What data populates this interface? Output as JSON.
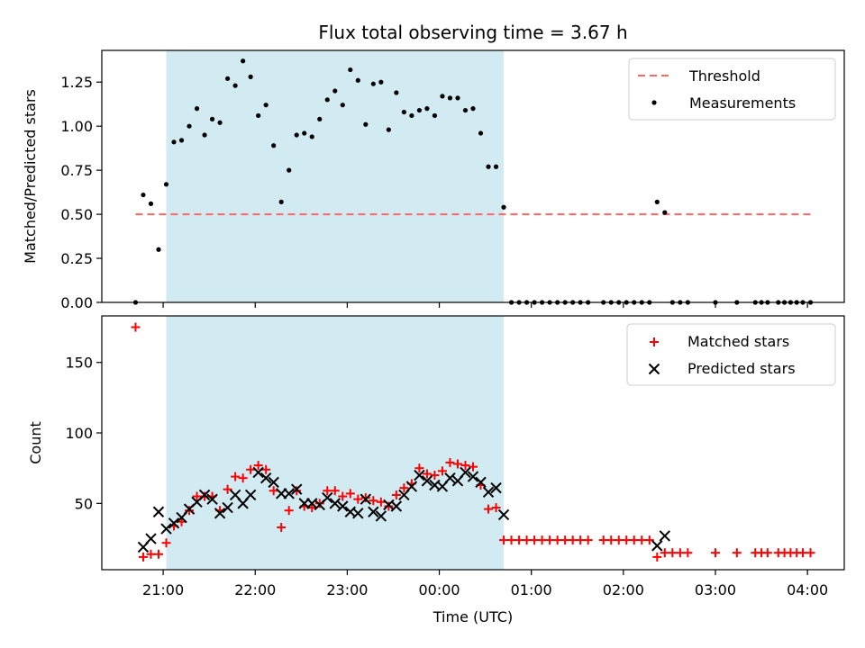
{
  "title": "Flux total observing time = 3.67 h",
  "xlabel": "Time (UTC)",
  "x_tick_labels": [
    "21:00",
    "22:00",
    "23:00",
    "00:00",
    "01:00",
    "02:00",
    "03:00",
    "04:00"
  ],
  "colors": {
    "shade": "#add8e6",
    "threshold": "#ff6666",
    "matched": "#ff0000",
    "predicted": "#000000",
    "measurement": "#000000"
  },
  "chart_data": [
    {
      "type": "scatter",
      "panel": "top",
      "ylabel": "Matched/Predicted stars",
      "xlim": [
        "20:20",
        "04:24"
      ],
      "ylim": [
        0,
        1.43
      ],
      "y_ticks": [
        "0.00",
        "0.25",
        "0.50",
        "0.75",
        "1.00",
        "1.25"
      ],
      "shaded_span": [
        "21:02",
        "00:42"
      ],
      "threshold": {
        "name": "Threshold",
        "value": 0.5,
        "x_range": [
          "20:42",
          "04:04"
        ]
      },
      "legend": {
        "position": "upper right",
        "entries": [
          "Threshold",
          "Measurements"
        ]
      },
      "series": [
        {
          "name": "Measurements",
          "points": [
            [
              "20:42",
              0.0
            ],
            [
              "20:47",
              0.61
            ],
            [
              "20:52",
              0.56
            ],
            [
              "20:57",
              0.3
            ],
            [
              "21:02",
              0.67
            ],
            [
              "21:07",
              0.91
            ],
            [
              "21:12",
              0.92
            ],
            [
              "21:17",
              1.0
            ],
            [
              "21:22",
              1.1
            ],
            [
              "21:27",
              0.95
            ],
            [
              "21:32",
              1.04
            ],
            [
              "21:37",
              1.02
            ],
            [
              "21:42",
              1.27
            ],
            [
              "21:47",
              1.23
            ],
            [
              "21:52",
              1.37
            ],
            [
              "21:57",
              1.28
            ],
            [
              "22:02",
              1.06
            ],
            [
              "22:07",
              1.12
            ],
            [
              "22:12",
              0.89
            ],
            [
              "22:17",
              0.57
            ],
            [
              "22:22",
              0.75
            ],
            [
              "22:27",
              0.95
            ],
            [
              "22:32",
              0.96
            ],
            [
              "22:37",
              0.94
            ],
            [
              "22:42",
              1.04
            ],
            [
              "22:47",
              1.15
            ],
            [
              "22:52",
              1.2
            ],
            [
              "22:57",
              1.12
            ],
            [
              "23:02",
              1.32
            ],
            [
              "23:07",
              1.26
            ],
            [
              "23:12",
              1.01
            ],
            [
              "23:17",
              1.24
            ],
            [
              "23:22",
              1.25
            ],
            [
              "23:27",
              0.98
            ],
            [
              "23:32",
              1.19
            ],
            [
              "23:37",
              1.08
            ],
            [
              "23:42",
              1.06
            ],
            [
              "23:47",
              1.09
            ],
            [
              "23:52",
              1.1
            ],
            [
              "23:57",
              1.06
            ],
            [
              "00:02",
              1.17
            ],
            [
              "00:07",
              1.16
            ],
            [
              "00:12",
              1.16
            ],
            [
              "00:17",
              1.09
            ],
            [
              "00:22",
              1.1
            ],
            [
              "00:27",
              0.96
            ],
            [
              "00:32",
              0.77
            ],
            [
              "00:37",
              0.77
            ],
            [
              "00:42",
              0.54
            ],
            [
              "00:47",
              0.0
            ],
            [
              "00:52",
              0.0
            ],
            [
              "00:57",
              0.0
            ],
            [
              "01:02",
              0.0
            ],
            [
              "01:07",
              0.0
            ],
            [
              "01:12",
              0.0
            ],
            [
              "01:17",
              0.0
            ],
            [
              "01:22",
              0.0
            ],
            [
              "01:27",
              0.0
            ],
            [
              "01:32",
              0.0
            ],
            [
              "01:37",
              0.0
            ],
            [
              "01:47",
              0.0
            ],
            [
              "01:52",
              0.0
            ],
            [
              "01:57",
              0.0
            ],
            [
              "02:02",
              0.0
            ],
            [
              "02:07",
              0.0
            ],
            [
              "02:12",
              0.0
            ],
            [
              "02:17",
              0.0
            ],
            [
              "02:22",
              0.57
            ],
            [
              "02:27",
              0.51
            ],
            [
              "02:32",
              0.0
            ],
            [
              "02:37",
              0.0
            ],
            [
              "02:42",
              0.0
            ],
            [
              "03:00",
              0.0
            ],
            [
              "03:14",
              0.0
            ],
            [
              "03:26",
              0.0
            ],
            [
              "03:30",
              0.0
            ],
            [
              "03:34",
              0.0
            ],
            [
              "03:41",
              0.0
            ],
            [
              "03:45",
              0.0
            ],
            [
              "03:49",
              0.0
            ],
            [
              "03:53",
              0.0
            ],
            [
              "03:57",
              0.0
            ],
            [
              "04:02",
              0.0
            ]
          ]
        }
      ]
    },
    {
      "type": "scatter",
      "panel": "bottom",
      "ylabel": "Count",
      "xlim": [
        "20:20",
        "04:24"
      ],
      "ylim": [
        3,
        183
      ],
      "y_ticks": [
        "50",
        "100",
        "150"
      ],
      "shaded_span": [
        "21:02",
        "00:42"
      ],
      "legend": {
        "position": "upper right",
        "entries": [
          "Matched stars",
          "Predicted stars"
        ]
      },
      "series": [
        {
          "name": "Matched stars",
          "points": [
            [
              "20:42",
              175
            ],
            [
              "20:47",
              12
            ],
            [
              "20:52",
              14
            ],
            [
              "20:57",
              14
            ],
            [
              "21:02",
              22
            ],
            [
              "21:07",
              34
            ],
            [
              "21:12",
              37
            ],
            [
              "21:17",
              45
            ],
            [
              "21:22",
              55
            ],
            [
              "21:27",
              55
            ],
            [
              "21:32",
              55
            ],
            [
              "21:37",
              45
            ],
            [
              "21:42",
              60
            ],
            [
              "21:47",
              69
            ],
            [
              "21:52",
              68
            ],
            [
              "21:57",
              74
            ],
            [
              "22:02",
              77
            ],
            [
              "22:07",
              74
            ],
            [
              "22:12",
              59
            ],
            [
              "22:17",
              33
            ],
            [
              "22:22",
              45
            ],
            [
              "22:27",
              59
            ],
            [
              "22:32",
              48
            ],
            [
              "22:37",
              47
            ],
            [
              "22:42",
              50
            ],
            [
              "22:47",
              59
            ],
            [
              "22:52",
              59
            ],
            [
              "22:57",
              55
            ],
            [
              "23:02",
              57
            ],
            [
              "23:07",
              53
            ],
            [
              "23:12",
              54
            ],
            [
              "23:17",
              52
            ],
            [
              "23:22",
              51
            ],
            [
              "23:27",
              48
            ],
            [
              "23:32",
              56
            ],
            [
              "23:37",
              61
            ],
            [
              "23:42",
              64
            ],
            [
              "23:47",
              75
            ],
            [
              "23:52",
              71
            ],
            [
              "23:57",
              70
            ],
            [
              "00:02",
              73
            ],
            [
              "00:07",
              79
            ],
            [
              "00:12",
              78
            ],
            [
              "00:17",
              77
            ],
            [
              "00:22",
              76
            ],
            [
              "00:27",
              63
            ],
            [
              "00:32",
              46
            ],
            [
              "00:37",
              47
            ],
            [
              "00:42",
              24
            ],
            [
              "00:47",
              24
            ],
            [
              "00:52",
              24
            ],
            [
              "00:57",
              24
            ],
            [
              "01:02",
              24
            ],
            [
              "01:07",
              24
            ],
            [
              "01:12",
              24
            ],
            [
              "01:17",
              24
            ],
            [
              "01:22",
              24
            ],
            [
              "01:27",
              24
            ],
            [
              "01:32",
              24
            ],
            [
              "01:37",
              24
            ],
            [
              "01:47",
              24
            ],
            [
              "01:52",
              24
            ],
            [
              "01:57",
              24
            ],
            [
              "02:02",
              24
            ],
            [
              "02:07",
              24
            ],
            [
              "02:12",
              24
            ],
            [
              "02:17",
              24
            ],
            [
              "02:22",
              12
            ],
            [
              "02:27",
              15
            ],
            [
              "02:32",
              15
            ],
            [
              "02:37",
              15
            ],
            [
              "02:42",
              15
            ],
            [
              "03:00",
              15
            ],
            [
              "03:14",
              15
            ],
            [
              "03:26",
              15
            ],
            [
              "03:30",
              15
            ],
            [
              "03:34",
              15
            ],
            [
              "03:41",
              15
            ],
            [
              "03:45",
              15
            ],
            [
              "03:49",
              15
            ],
            [
              "03:53",
              15
            ],
            [
              "03:57",
              15
            ],
            [
              "04:02",
              15
            ]
          ]
        },
        {
          "name": "Predicted stars",
          "points": [
            [
              "20:47",
              19
            ],
            [
              "20:52",
              25
            ],
            [
              "20:57",
              44
            ],
            [
              "21:02",
              32
            ],
            [
              "21:07",
              36
            ],
            [
              "21:12",
              40
            ],
            [
              "21:17",
              46
            ],
            [
              "21:22",
              51
            ],
            [
              "21:27",
              56
            ],
            [
              "21:32",
              53
            ],
            [
              "21:37",
              43
            ],
            [
              "21:42",
              47
            ],
            [
              "21:47",
              56
            ],
            [
              "21:52",
              50
            ],
            [
              "21:57",
              56
            ],
            [
              "22:02",
              72
            ],
            [
              "22:07",
              68
            ],
            [
              "22:12",
              65
            ],
            [
              "22:17",
              57
            ],
            [
              "22:22",
              57
            ],
            [
              "22:27",
              60
            ],
            [
              "22:32",
              50
            ],
            [
              "22:37",
              50
            ],
            [
              "22:42",
              49
            ],
            [
              "22:47",
              54
            ],
            [
              "22:52",
              50
            ],
            [
              "22:57",
              48
            ],
            [
              "23:02",
              44
            ],
            [
              "23:07",
              43
            ],
            [
              "23:12",
              53
            ],
            [
              "23:17",
              44
            ],
            [
              "23:22",
              41
            ],
            [
              "23:27",
              49
            ],
            [
              "23:32",
              48
            ],
            [
              "23:37",
              56
            ],
            [
              "23:42",
              62
            ],
            [
              "23:47",
              70
            ],
            [
              "23:52",
              66
            ],
            [
              "23:57",
              63
            ],
            [
              "00:02",
              62
            ],
            [
              "00:07",
              68
            ],
            [
              "00:12",
              66
            ],
            [
              "00:17",
              72
            ],
            [
              "00:22",
              69
            ],
            [
              "00:27",
              65
            ],
            [
              "00:32",
              58
            ],
            [
              "00:37",
              61
            ],
            [
              "00:42",
              42
            ],
            [
              "02:22",
              20
            ],
            [
              "02:27",
              27
            ]
          ]
        }
      ]
    }
  ]
}
